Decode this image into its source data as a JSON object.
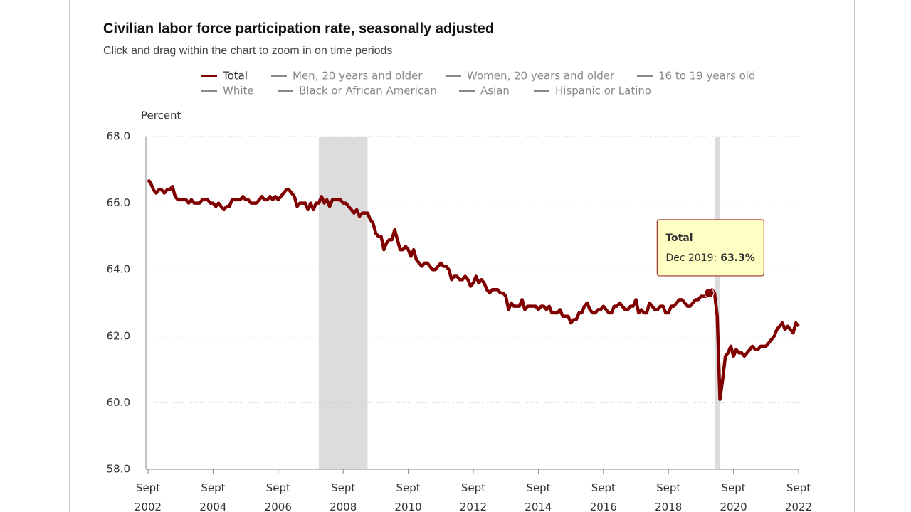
{
  "chart_data": {
    "type": "line",
    "title": "Civilian labor force participation rate, seasonally adjusted",
    "subtitle": "Click and drag within the chart to zoom in on time periods",
    "y_label": "Percent",
    "x": [
      "2002-09",
      "2002-10",
      "2002-11",
      "2002-12",
      "2003-01",
      "2003-02",
      "2003-03",
      "2003-04",
      "2003-05",
      "2003-06",
      "2003-07",
      "2003-08",
      "2003-09",
      "2003-10",
      "2003-11",
      "2003-12",
      "2004-01",
      "2004-02",
      "2004-03",
      "2004-04",
      "2004-05",
      "2004-06",
      "2004-07",
      "2004-08",
      "2004-09",
      "2004-10",
      "2004-11",
      "2004-12",
      "2005-01",
      "2005-02",
      "2005-03",
      "2005-04",
      "2005-05",
      "2005-06",
      "2005-07",
      "2005-08",
      "2005-09",
      "2005-10",
      "2005-11",
      "2005-12",
      "2006-01",
      "2006-02",
      "2006-03",
      "2006-04",
      "2006-05",
      "2006-06",
      "2006-07",
      "2006-08",
      "2006-09",
      "2006-10",
      "2006-11",
      "2006-12",
      "2007-01",
      "2007-02",
      "2007-03",
      "2007-04",
      "2007-05",
      "2007-06",
      "2007-07",
      "2007-08",
      "2007-09",
      "2007-10",
      "2007-11",
      "2007-12",
      "2008-01",
      "2008-02",
      "2008-03",
      "2008-04",
      "2008-05",
      "2008-06",
      "2008-07",
      "2008-08",
      "2008-09",
      "2008-10",
      "2008-11",
      "2008-12",
      "2009-01",
      "2009-02",
      "2009-03",
      "2009-04",
      "2009-05",
      "2009-06",
      "2009-07",
      "2009-08",
      "2009-09",
      "2009-10",
      "2009-11",
      "2009-12",
      "2010-01",
      "2010-02",
      "2010-03",
      "2010-04",
      "2010-05",
      "2010-06",
      "2010-07",
      "2010-08",
      "2010-09",
      "2010-10",
      "2010-11",
      "2010-12",
      "2011-01",
      "2011-02",
      "2011-03",
      "2011-04",
      "2011-05",
      "2011-06",
      "2011-07",
      "2011-08",
      "2011-09",
      "2011-10",
      "2011-11",
      "2011-12",
      "2012-01",
      "2012-02",
      "2012-03",
      "2012-04",
      "2012-05",
      "2012-06",
      "2012-07",
      "2012-08",
      "2012-09",
      "2012-10",
      "2012-11",
      "2012-12",
      "2013-01",
      "2013-02",
      "2013-03",
      "2013-04",
      "2013-05",
      "2013-06",
      "2013-07",
      "2013-08",
      "2013-09",
      "2013-10",
      "2013-11",
      "2013-12",
      "2014-01",
      "2014-02",
      "2014-03",
      "2014-04",
      "2014-05",
      "2014-06",
      "2014-07",
      "2014-08",
      "2014-09",
      "2014-10",
      "2014-11",
      "2014-12",
      "2015-01",
      "2015-02",
      "2015-03",
      "2015-04",
      "2015-05",
      "2015-06",
      "2015-07",
      "2015-08",
      "2015-09",
      "2015-10",
      "2015-11",
      "2015-12",
      "2016-01",
      "2016-02",
      "2016-03",
      "2016-04",
      "2016-05",
      "2016-06",
      "2016-07",
      "2016-08",
      "2016-09",
      "2016-10",
      "2016-11",
      "2016-12",
      "2017-01",
      "2017-02",
      "2017-03",
      "2017-04",
      "2017-05",
      "2017-06",
      "2017-07",
      "2017-08",
      "2017-09",
      "2017-10",
      "2017-11",
      "2017-12",
      "2018-01",
      "2018-02",
      "2018-03",
      "2018-04",
      "2018-05",
      "2018-06",
      "2018-07",
      "2018-08",
      "2018-09",
      "2018-10",
      "2018-11",
      "2018-12",
      "2019-01",
      "2019-02",
      "2019-03",
      "2019-04",
      "2019-05",
      "2019-06",
      "2019-07",
      "2019-08",
      "2019-09",
      "2019-10",
      "2019-11",
      "2019-12",
      "2020-01",
      "2020-02",
      "2020-03",
      "2020-04",
      "2020-05",
      "2020-06",
      "2020-07",
      "2020-08",
      "2020-09",
      "2020-10",
      "2020-11",
      "2020-12",
      "2021-01",
      "2021-02",
      "2021-03",
      "2021-04",
      "2021-05",
      "2021-06",
      "2021-07",
      "2021-08",
      "2021-09",
      "2021-10",
      "2021-11",
      "2021-12",
      "2022-01",
      "2022-02",
      "2022-03",
      "2022-04",
      "2022-05",
      "2022-06",
      "2022-07",
      "2022-08",
      "2022-09"
    ],
    "series": [
      {
        "name": "Total",
        "color": "#800000",
        "visible": true,
        "values": [
          66.7,
          66.6,
          66.4,
          66.3,
          66.4,
          66.4,
          66.3,
          66.4,
          66.4,
          66.5,
          66.2,
          66.1,
          66.1,
          66.1,
          66.1,
          66.0,
          66.1,
          66.0,
          66.0,
          66.0,
          66.1,
          66.1,
          66.1,
          66.0,
          66.0,
          65.9,
          66.0,
          65.9,
          65.8,
          65.9,
          65.9,
          66.1,
          66.1,
          66.1,
          66.1,
          66.2,
          66.1,
          66.1,
          66.0,
          66.0,
          66.0,
          66.1,
          66.2,
          66.1,
          66.1,
          66.2,
          66.1,
          66.2,
          66.1,
          66.2,
          66.3,
          66.4,
          66.4,
          66.3,
          66.2,
          65.9,
          66.0,
          66.0,
          66.0,
          65.8,
          66.0,
          65.8,
          66.0,
          66.0,
          66.2,
          66.0,
          66.1,
          65.9,
          66.1,
          66.1,
          66.1,
          66.1,
          66.0,
          66.0,
          65.9,
          65.8,
          65.7,
          65.8,
          65.6,
          65.7,
          65.7,
          65.7,
          65.5,
          65.4,
          65.1,
          65.0,
          65.0,
          64.6,
          64.8,
          64.9,
          64.9,
          65.2,
          64.9,
          64.6,
          64.6,
          64.7,
          64.6,
          64.4,
          64.6,
          64.3,
          64.2,
          64.1,
          64.2,
          64.2,
          64.1,
          64.0,
          64.0,
          64.1,
          64.2,
          64.1,
          64.1,
          64.0,
          63.7,
          63.8,
          63.8,
          63.7,
          63.7,
          63.8,
          63.7,
          63.5,
          63.6,
          63.8,
          63.6,
          63.7,
          63.6,
          63.4,
          63.3,
          63.4,
          63.4,
          63.4,
          63.3,
          63.3,
          63.2,
          62.8,
          63.0,
          62.9,
          62.9,
          62.9,
          63.1,
          62.8,
          62.9,
          62.9,
          62.9,
          62.9,
          62.8,
          62.9,
          62.9,
          62.8,
          62.9,
          62.7,
          62.7,
          62.7,
          62.8,
          62.6,
          62.6,
          62.6,
          62.4,
          62.5,
          62.5,
          62.7,
          62.7,
          62.9,
          63.0,
          62.8,
          62.7,
          62.7,
          62.8,
          62.8,
          62.9,
          62.8,
          62.7,
          62.7,
          62.9,
          62.9,
          63.0,
          62.9,
          62.8,
          62.8,
          62.9,
          62.9,
          63.1,
          62.7,
          62.8,
          62.7,
          62.7,
          63.0,
          62.9,
          62.8,
          62.8,
          62.9,
          62.9,
          62.7,
          62.7,
          62.9,
          62.9,
          63.0,
          63.1,
          63.1,
          63.0,
          62.9,
          62.9,
          63.0,
          63.1,
          63.1,
          63.2,
          63.2,
          63.2,
          63.3,
          63.4,
          63.3,
          62.6,
          60.1,
          60.7,
          61.4,
          61.5,
          61.7,
          61.4,
          61.6,
          61.5,
          61.5,
          61.4,
          61.5,
          61.6,
          61.7,
          61.6,
          61.6,
          61.7,
          61.7,
          61.7,
          61.8,
          61.9,
          62.0,
          62.2,
          62.3,
          62.4,
          62.2,
          62.3,
          62.2,
          62.1,
          62.4,
          62.3
        ]
      },
      {
        "name": "Men, 20 years and older",
        "color": "#777777",
        "visible": false
      },
      {
        "name": "Women, 20 years and older",
        "color": "#777777",
        "visible": false
      },
      {
        "name": "16 to 19 years old",
        "color": "#777777",
        "visible": false
      },
      {
        "name": "White",
        "color": "#777777",
        "visible": false
      },
      {
        "name": "Black or African American",
        "color": "#777777",
        "visible": false
      },
      {
        "name": "Asian",
        "color": "#777777",
        "visible": false
      },
      {
        "name": "Hispanic or Latino",
        "color": "#777777",
        "visible": false
      }
    ],
    "ylim": [
      58,
      68
    ],
    "yticks": [
      {
        "value": 58,
        "label": "58.0"
      },
      {
        "value": 60,
        "label": "60.0"
      },
      {
        "value": 62,
        "label": "62.0"
      },
      {
        "value": 64,
        "label": "64.0"
      },
      {
        "value": 66,
        "label": "66.0"
      },
      {
        "value": 68,
        "label": "68.0"
      }
    ],
    "xticks": [
      {
        "value": "2002-09",
        "label": "Sept 2002"
      },
      {
        "value": "2004-09",
        "label": "Sept 2004"
      },
      {
        "value": "2006-09",
        "label": "Sept 2006"
      },
      {
        "value": "2008-09",
        "label": "Sept 2008"
      },
      {
        "value": "2010-09",
        "label": "Sept 2010"
      },
      {
        "value": "2012-09",
        "label": "Sept 2012"
      },
      {
        "value": "2014-09",
        "label": "Sept 2014"
      },
      {
        "value": "2016-09",
        "label": "Sept 2016"
      },
      {
        "value": "2018-09",
        "label": "Sept 2018"
      },
      {
        "value": "2020-09",
        "label": "Sept 2020"
      },
      {
        "value": "2022-09",
        "label": "Sept 2022"
      }
    ],
    "shaded_periods": [
      [
        "2007-12",
        "2009-06"
      ],
      [
        "2020-02",
        "2020-04"
      ]
    ],
    "shade_color": "#dcdcdc",
    "grid": true,
    "tooltip": {
      "title": "Total",
      "x": "2019-12",
      "date": "Dec 2019:",
      "value_label": "63.3%"
    }
  }
}
